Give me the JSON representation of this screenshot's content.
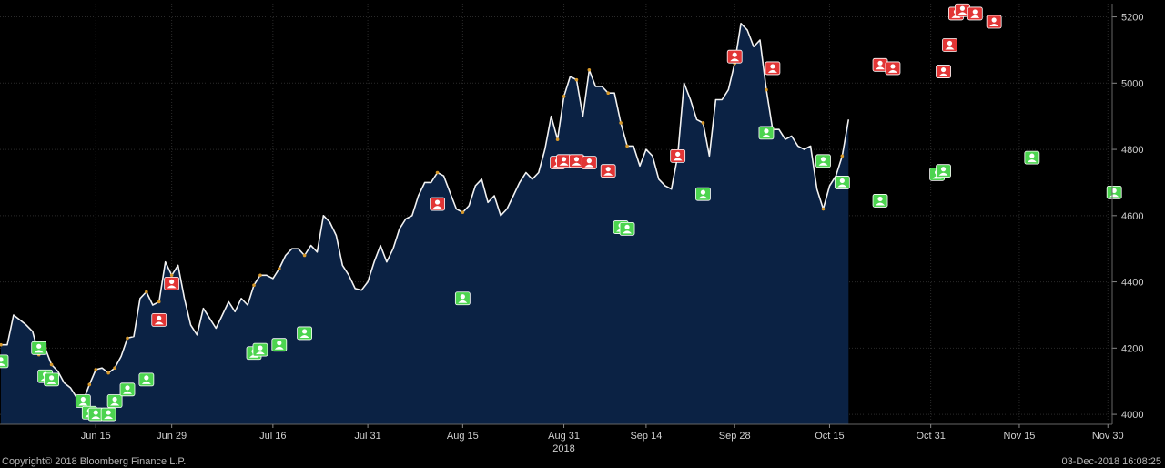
{
  "chart_data": {
    "type": "area",
    "title": "",
    "xlabel": "",
    "ylabel": "",
    "ylim": [
      3970,
      5240
    ],
    "grid": true,
    "y_axis_side": "right",
    "y_ticks": [
      "4000",
      "4200",
      "4400",
      "4600",
      "4800",
      "5000",
      "5200"
    ],
    "x_ticks": [
      "Jun 15",
      "Jun 29",
      "Jul 16",
      "Jul 31",
      "Aug 15",
      "Aug 31",
      "Sep 14",
      "Sep 28",
      "Oct 15",
      "Oct 31",
      "Nov 15",
      "Nov 30"
    ],
    "x_sublabel": "2018",
    "series": [
      {
        "values": [
          4210,
          4210,
          4300,
          4285,
          4270,
          4250,
          4180,
          4200,
          4150,
          4130,
          4095,
          4080,
          4050,
          4040,
          4090,
          4135,
          4140,
          4125,
          4140,
          4175,
          4230,
          4235,
          4350,
          4370,
          4330,
          4340,
          4460,
          4420,
          4450,
          4350,
          4270,
          4240,
          4320,
          4290,
          4260,
          4300,
          4340,
          4310,
          4350,
          4330,
          4390,
          4420,
          4420,
          4410,
          4440,
          4480,
          4500,
          4500,
          4480,
          4510,
          4490,
          4600,
          4580,
          4540,
          4450,
          4420,
          4380,
          4375,
          4400,
          4460,
          4510,
          4460,
          4500,
          4560,
          4590,
          4600,
          4660,
          4700,
          4700,
          4730,
          4720,
          4670,
          4620,
          4610,
          4630,
          4690,
          4710,
          4640,
          4660,
          4600,
          4620,
          4660,
          4700,
          4730,
          4710,
          4730,
          4800,
          4900,
          4830,
          4960,
          5020,
          5010,
          4900,
          5040,
          4990,
          4990,
          4970,
          4970,
          4880,
          4810,
          4810,
          4750,
          4800,
          4780,
          4710,
          4690,
          4680,
          4780,
          5000,
          4950,
          4890,
          4880,
          4780,
          4950,
          4950,
          4980,
          5060,
          5180,
          5160,
          5110,
          5130,
          4980,
          4860,
          4860,
          4830,
          4840,
          4810,
          4800,
          4810,
          4680,
          4620,
          4690,
          4720,
          4780,
          4890
        ],
        "buy_signals": [
          {
            "i": 0,
            "v": 4160
          },
          {
            "i": 6,
            "v": 4200
          },
          {
            "i": 7,
            "v": 4115
          },
          {
            "i": 8,
            "v": 4105
          },
          {
            "i": 13,
            "v": 4040
          },
          {
            "i": 14,
            "v": 4005
          },
          {
            "i": 15,
            "v": 4000
          },
          {
            "i": 17,
            "v": 4000
          },
          {
            "i": 18,
            "v": 4040
          },
          {
            "i": 20,
            "v": 4075
          },
          {
            "i": 23,
            "v": 4105
          },
          {
            "i": 40,
            "v": 4185
          },
          {
            "i": 41,
            "v": 4195
          },
          {
            "i": 44,
            "v": 4210
          },
          {
            "i": 48,
            "v": 4245
          },
          {
            "i": 73,
            "v": 4350
          },
          {
            "i": 98,
            "v": 4565
          },
          {
            "i": 99,
            "v": 4560
          },
          {
            "i": 111,
            "v": 4665
          },
          {
            "i": 121,
            "v": 4850
          },
          {
            "i": 130,
            "v": 4765
          },
          {
            "i": 133,
            "v": 4700
          },
          {
            "i": 139,
            "v": 4645
          },
          {
            "i": 148,
            "v": 4725
          },
          {
            "i": 149,
            "v": 4735
          },
          {
            "i": 163,
            "v": 4775
          },
          {
            "i": 176,
            "v": 4670
          }
        ],
        "sell_signals": [
          {
            "i": 25,
            "v": 4285
          },
          {
            "i": 27,
            "v": 4395
          },
          {
            "i": 69,
            "v": 4635
          },
          {
            "i": 88,
            "v": 4760
          },
          {
            "i": 89,
            "v": 4765
          },
          {
            "i": 91,
            "v": 4765
          },
          {
            "i": 93,
            "v": 4760
          },
          {
            "i": 96,
            "v": 4735
          },
          {
            "i": 107,
            "v": 4780
          },
          {
            "i": 116,
            "v": 5080
          },
          {
            "i": 122,
            "v": 5045
          },
          {
            "i": 139,
            "v": 5055
          },
          {
            "i": 141,
            "v": 5045
          },
          {
            "i": 149,
            "v": 5035
          },
          {
            "i": 150,
            "v": 5115
          },
          {
            "i": 151,
            "v": 5210
          },
          {
            "i": 152,
            "v": 5220
          },
          {
            "i": 154,
            "v": 5210
          },
          {
            "i": 157,
            "v": 5185
          }
        ]
      }
    ],
    "colors": {
      "background": "#000000",
      "area_fill": "#0b2244",
      "line": "#f2f2f2",
      "grid": "#2a2a2a",
      "buy_marker": "#4cd44f",
      "sell_marker": "#e23535",
      "dot": "#d89a2c",
      "axis_text": "#cfcfcf"
    }
  },
  "footer": {
    "copyright": "Copyright© 2018 Bloomberg Finance L.P.",
    "timestamp": "03-Dec-2018 16:08:25"
  }
}
